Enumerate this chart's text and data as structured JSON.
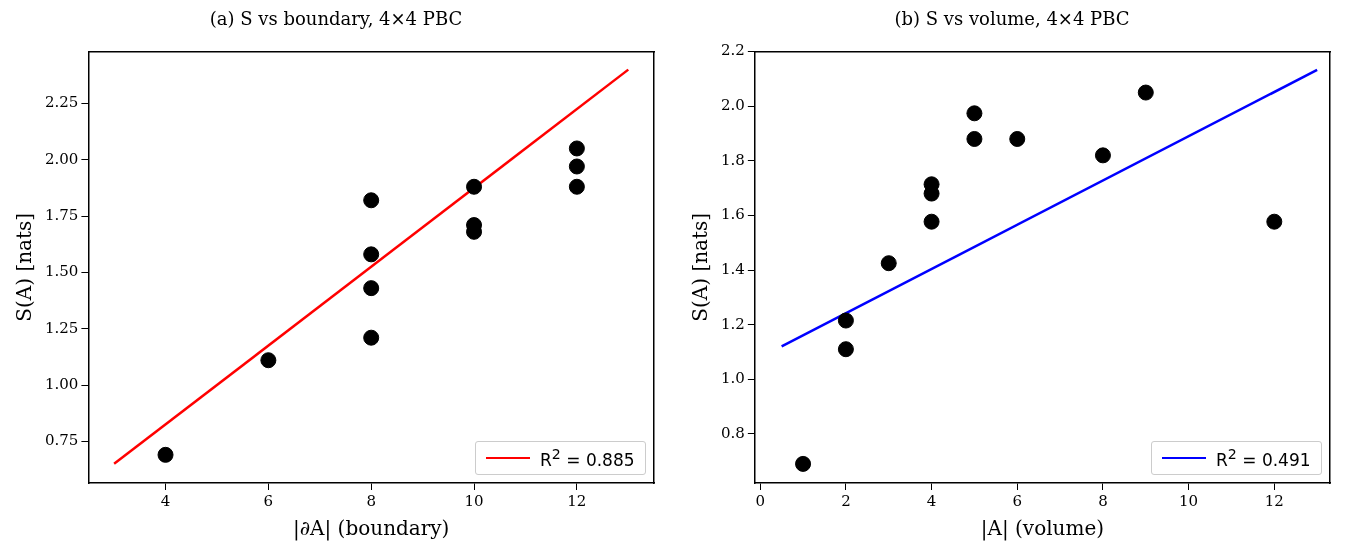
{
  "chart_data": [
    {
      "type": "scatter",
      "title": "(a) S vs boundary, 4×4 PBC",
      "xlabel": "|∂A| (boundary)",
      "ylabel": "S(A) [nats]",
      "xlim": [
        2.5,
        13.5
      ],
      "xticks": [
        4,
        6,
        8,
        10,
        12
      ],
      "ylim": [
        0.565,
        2.48
      ],
      "yticks": [
        {
          "value": 0.75,
          "label": "0.75"
        },
        {
          "value": 1,
          "label": "1.00"
        },
        {
          "value": 1.25,
          "label": "1.25"
        },
        {
          "value": 1.5,
          "label": "1.50"
        },
        {
          "value": 1.75,
          "label": "1.75"
        },
        {
          "value": 2,
          "label": "2.00"
        },
        {
          "value": 2.25,
          "label": "2.25"
        }
      ],
      "grid": false,
      "legend": "bottom right",
      "series": [
        {
          "marker": "circle",
          "color": "#000000",
          "x": [
            4,
            6,
            8,
            8,
            8,
            8,
            10,
            10,
            10,
            12,
            12,
            12
          ],
          "values": [
            0.69,
            1.11,
            1.82,
            1.58,
            1.43,
            1.21,
            1.88,
            1.71,
            1.68,
            2.05,
            1.97,
            1.88
          ]
        },
        {
          "type": "line",
          "marker": "none",
          "name": "R$^{2}$ = 0.885",
          "color": "#ff0000",
          "x": [
            3,
            13
          ],
          "values": [
            0.65,
            2.4
          ]
        }
      ]
    },
    {
      "type": "scatter",
      "title": "(b) S vs volume, 4×4 PBC",
      "xlabel": "|A| (volume)",
      "ylabel": "S(A) [nats]",
      "xlim": [
        -0.125,
        13.3
      ],
      "xticks": [
        0,
        2,
        4,
        6,
        8,
        10,
        12
      ],
      "ylim": [
        0.62,
        2.2
      ],
      "yticks": [
        {
          "value": 0.8,
          "label": "0.8"
        },
        {
          "value": 1,
          "label": "1.0"
        },
        {
          "value": 1.2,
          "label": "1.2"
        },
        {
          "value": 1.4,
          "label": "1.4"
        },
        {
          "value": 1.6,
          "label": "1.6"
        },
        {
          "value": 1.8,
          "label": "1.8"
        },
        {
          "value": 2,
          "label": "2.0"
        },
        {
          "value": 2.2,
          "label": "2.2"
        }
      ],
      "grid": false,
      "legend": "bottom right",
      "series": [
        {
          "marker": "circle",
          "color": "#000000",
          "x": [
            1,
            2,
            2,
            3,
            4,
            4,
            4,
            5,
            5,
            6,
            8,
            9,
            12
          ],
          "values": [
            0.69,
            1.215,
            1.11,
            1.425,
            1.714,
            1.68,
            1.577,
            1.974,
            1.88,
            1.88,
            1.82,
            2.05,
            1.577
          ]
        },
        {
          "type": "line",
          "marker": "none",
          "name": "R$^{2}$ = 0.491",
          "color": "#0000ff",
          "x": [
            0.5,
            13
          ],
          "values": [
            1.12,
            2.133
          ]
        }
      ]
    }
  ]
}
